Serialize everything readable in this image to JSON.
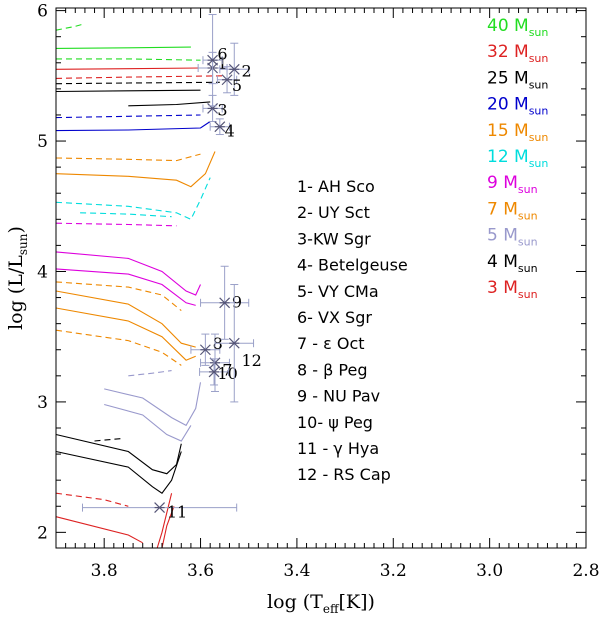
{
  "chart_data": {
    "type": "line",
    "xlabel": "log (T",
    "xlabel_sub": "eff",
    "xlabel_tail": "[K])",
    "ylabel": "log (L/L",
    "ylabel_sub": "sun",
    "ylabel_tail": ")",
    "xlim": [
      3.9,
      2.8
    ],
    "ylim": [
      1.88,
      6.02
    ],
    "x_ticks": [
      "3.8",
      "3.6",
      "3.4",
      "3.2",
      "3.0",
      "2.8"
    ],
    "y_ticks": [
      "2",
      "3",
      "4",
      "5",
      "6"
    ],
    "legend_placement": "top-right",
    "legend": [
      {
        "mass": "40",
        "unit": " M",
        "sub": "sun",
        "color": "#22dd22"
      },
      {
        "mass": "32",
        "unit": " M",
        "sub": "sun",
        "color": "#dd2222"
      },
      {
        "mass": "25",
        "unit": " M",
        "sub": "sun",
        "color": "#000000"
      },
      {
        "mass": "20",
        "unit": " M",
        "sub": "sun",
        "color": "#0000cc"
      },
      {
        "mass": "15",
        "unit": " M",
        "sub": "sun",
        "color": "#ee8800"
      },
      {
        "mass": "12",
        "unit": " M",
        "sub": "sun",
        "color": "#00dddd"
      },
      {
        "mass": "9",
        "unit": " M",
        "sub": "sun",
        "color": "#dd00dd"
      },
      {
        "mass": "7",
        "unit": " M",
        "sub": "sun",
        "color": "#ee8800"
      },
      {
        "mass": "5",
        "unit": " M",
        "sub": "sun",
        "color": "#9999cc"
      },
      {
        "mass": "4",
        "unit": " M",
        "sub": "sun",
        "color": "#000000"
      },
      {
        "mass": "3",
        "unit": " M",
        "sub": "sun",
        "color": "#dd2222"
      }
    ],
    "star_list": [
      "1- AH Sco",
      "2- UY Sct",
      "3-KW Sgr",
      "4- Betelgeuse",
      "5- VY CMa",
      "6- VX Sgr",
      "7 - ε Oct",
      "8 - β Peg",
      "9 - NU Pav",
      "10- ψ Peg",
      "11 - γ Hya",
      "12 - RS Cap"
    ],
    "stars": [
      {
        "label": "1",
        "x": 3.575,
        "y": 5.56,
        "xerr": 0.03,
        "yerr": 0.12,
        "lx": 3.565,
        "ly": 5.6
      },
      {
        "label": "2",
        "x": 3.53,
        "y": 5.55,
        "xerr": 0.03,
        "yerr": 0.2,
        "lx": 3.515,
        "ly": 5.54
      },
      {
        "label": "3",
        "x": 3.575,
        "y": 5.25,
        "xerr": 0.02,
        "yerr": 0.1,
        "lx": 3.565,
        "ly": 5.24
      },
      {
        "label": "4",
        "x": 3.56,
        "y": 5.11,
        "xerr": 0.02,
        "yerr": 0.06,
        "lx": 3.55,
        "ly": 5.08
      },
      {
        "label": "5",
        "x": 3.545,
        "y": 5.47,
        "xerr": 0.02,
        "yerr": 0.1,
        "lx": 3.535,
        "ly": 5.43
      },
      {
        "label": "6",
        "x": 3.575,
        "y": 5.62,
        "xerr": 0.02,
        "yerr": 0.35,
        "lx": 3.565,
        "ly": 5.67
      },
      {
        "label": "7",
        "x": 3.57,
        "y": 3.3,
        "xerr": 0.03,
        "yerr": 0.22,
        "lx": 3.555,
        "ly": 3.25
      },
      {
        "label": "8",
        "x": 3.59,
        "y": 3.4,
        "xerr": 0.03,
        "yerr": 0.12,
        "lx": 3.575,
        "ly": 3.45
      },
      {
        "label": "9",
        "x": 3.55,
        "y": 3.76,
        "xerr": 0.05,
        "yerr": 0.28,
        "lx": 3.535,
        "ly": 3.77
      },
      {
        "label": "10",
        "x": 3.572,
        "y": 3.23,
        "xerr": 0.03,
        "yerr": 0.1,
        "lx": 3.565,
        "ly": 3.22
      },
      {
        "label": "11",
        "x": 3.685,
        "y": 2.19,
        "xerr": 0.16,
        "yerr": 0.0,
        "lx": 3.67,
        "ly": 2.16
      },
      {
        "label": "12",
        "x": 3.53,
        "y": 3.45,
        "xerr": 0.04,
        "yerr": 0.45,
        "lx": 3.515,
        "ly": 3.32
      }
    ],
    "series": [
      {
        "mass": "40",
        "color": "#22dd22",
        "dash": false,
        "points": [
          [
            3.9,
            5.71
          ],
          [
            3.75,
            5.715
          ],
          [
            3.62,
            5.72
          ]
        ]
      },
      {
        "mass": "40",
        "color": "#22dd22",
        "dash": true,
        "points": [
          [
            3.9,
            5.85
          ],
          [
            3.86,
            5.88
          ],
          [
            3.84,
            5.9
          ]
        ]
      },
      {
        "mass": "40",
        "color": "#22dd22",
        "dash": true,
        "points": [
          [
            3.9,
            5.63
          ],
          [
            3.75,
            5.63
          ],
          [
            3.6,
            5.62
          ]
        ]
      },
      {
        "mass": "32",
        "color": "#dd2222",
        "dash": false,
        "points": [
          [
            3.9,
            5.55
          ],
          [
            3.75,
            5.555
          ],
          [
            3.6,
            5.56
          ]
        ]
      },
      {
        "mass": "32",
        "color": "#dd2222",
        "dash": true,
        "points": [
          [
            3.9,
            5.48
          ],
          [
            3.75,
            5.49
          ],
          [
            3.55,
            5.5
          ]
        ]
      },
      {
        "mass": "25",
        "color": "#000000",
        "dash": false,
        "points": [
          [
            3.9,
            5.38
          ],
          [
            3.75,
            5.385
          ],
          [
            3.6,
            5.39
          ]
        ]
      },
      {
        "mass": "25",
        "color": "#000000",
        "dash": true,
        "points": [
          [
            3.9,
            5.44
          ],
          [
            3.75,
            5.445
          ],
          [
            3.56,
            5.45
          ]
        ]
      },
      {
        "mass": "25",
        "color": "#000000",
        "dash": false,
        "points": [
          [
            3.75,
            5.27
          ],
          [
            3.65,
            5.28
          ],
          [
            3.58,
            5.3
          ]
        ]
      },
      {
        "mass": "20",
        "color": "#0000cc",
        "dash": false,
        "points": [
          [
            3.9,
            5.08
          ],
          [
            3.75,
            5.085
          ],
          [
            3.6,
            5.1
          ],
          [
            3.58,
            5.15
          ]
        ]
      },
      {
        "mass": "20",
        "color": "#0000cc",
        "dash": true,
        "points": [
          [
            3.9,
            5.18
          ],
          [
            3.75,
            5.19
          ],
          [
            3.6,
            5.2
          ]
        ]
      },
      {
        "mass": "15",
        "color": "#ee8800",
        "dash": false,
        "points": [
          [
            3.9,
            4.75
          ],
          [
            3.75,
            4.73
          ],
          [
            3.65,
            4.7
          ],
          [
            3.62,
            4.65
          ],
          [
            3.59,
            4.75
          ],
          [
            3.57,
            4.92
          ]
        ]
      },
      {
        "mass": "15",
        "color": "#ee8800",
        "dash": true,
        "points": [
          [
            3.9,
            4.87
          ],
          [
            3.75,
            4.86
          ],
          [
            3.65,
            4.85
          ],
          [
            3.6,
            4.9
          ]
        ]
      },
      {
        "mass": "12",
        "color": "#00dddd",
        "dash": true,
        "points": [
          [
            3.9,
            4.53
          ],
          [
            3.75,
            4.5
          ],
          [
            3.65,
            4.45
          ],
          [
            3.62,
            4.4
          ],
          [
            3.6,
            4.55
          ],
          [
            3.58,
            4.72
          ]
        ]
      },
      {
        "mass": "12",
        "color": "#00dddd",
        "dash": true,
        "points": [
          [
            3.85,
            4.45
          ],
          [
            3.75,
            4.44
          ],
          [
            3.66,
            4.42
          ]
        ]
      },
      {
        "mass": "9",
        "color": "#dd00dd",
        "dash": false,
        "points": [
          [
            3.9,
            4.15
          ],
          [
            3.75,
            4.1
          ],
          [
            3.68,
            4.0
          ],
          [
            3.63,
            3.85
          ],
          [
            3.61,
            3.82
          ],
          [
            3.6,
            3.9
          ]
        ]
      },
      {
        "mass": "9",
        "color": "#dd00dd",
        "dash": false,
        "points": [
          [
            3.9,
            4.02
          ],
          [
            3.75,
            3.98
          ],
          [
            3.68,
            3.9
          ],
          [
            3.63,
            3.76
          ],
          [
            3.61,
            3.74
          ]
        ]
      },
      {
        "mass": "9",
        "color": "#dd00dd",
        "dash": true,
        "points": [
          [
            3.9,
            4.37
          ],
          [
            3.75,
            4.36
          ],
          [
            3.65,
            4.35
          ]
        ]
      },
      {
        "mass": "7",
        "color": "#ee8800",
        "dash": false,
        "points": [
          [
            3.9,
            3.85
          ],
          [
            3.75,
            3.75
          ],
          [
            3.68,
            3.6
          ],
          [
            3.64,
            3.45
          ],
          [
            3.61,
            3.42
          ]
        ]
      },
      {
        "mass": "7",
        "color": "#ee8800",
        "dash": false,
        "points": [
          [
            3.9,
            3.72
          ],
          [
            3.75,
            3.62
          ],
          [
            3.68,
            3.5
          ],
          [
            3.63,
            3.32
          ],
          [
            3.61,
            3.35
          ]
        ]
      },
      {
        "mass": "7",
        "color": "#ee8800",
        "dash": true,
        "points": [
          [
            3.9,
            3.92
          ],
          [
            3.75,
            3.88
          ],
          [
            3.68,
            3.82
          ],
          [
            3.64,
            3.7
          ]
        ]
      },
      {
        "mass": "7",
        "color": "#ee8800",
        "dash": true,
        "points": [
          [
            3.9,
            3.55
          ],
          [
            3.75,
            3.47
          ],
          [
            3.68,
            3.38
          ],
          [
            3.64,
            3.28
          ]
        ]
      },
      {
        "mass": "5",
        "color": "#9999cc",
        "dash": false,
        "points": [
          [
            3.8,
            3.1
          ],
          [
            3.72,
            3.03
          ],
          [
            3.66,
            2.88
          ],
          [
            3.63,
            2.82
          ],
          [
            3.61,
            2.95
          ],
          [
            3.6,
            3.15
          ]
        ]
      },
      {
        "mass": "5",
        "color": "#9999cc",
        "dash": true,
        "points": [
          [
            3.75,
            3.2
          ],
          [
            3.7,
            3.22
          ],
          [
            3.66,
            3.24
          ]
        ]
      },
      {
        "mass": "5",
        "color": "#9999cc",
        "dash": false,
        "points": [
          [
            3.8,
            2.98
          ],
          [
            3.72,
            2.9
          ],
          [
            3.67,
            2.75
          ],
          [
            3.64,
            2.7
          ],
          [
            3.62,
            2.82
          ]
        ]
      },
      {
        "mass": "4",
        "color": "#000000",
        "dash": false,
        "points": [
          [
            3.9,
            2.62
          ],
          [
            3.75,
            2.5
          ],
          [
            3.7,
            2.35
          ],
          [
            3.68,
            2.3
          ],
          [
            3.66,
            2.4
          ],
          [
            3.64,
            2.62
          ]
        ]
      },
      {
        "mass": "4",
        "color": "#000000",
        "dash": true,
        "points": [
          [
            3.82,
            2.7
          ],
          [
            3.76,
            2.72
          ]
        ]
      },
      {
        "mass": "4",
        "color": "#000000",
        "dash": false,
        "points": [
          [
            3.9,
            2.75
          ],
          [
            3.75,
            2.62
          ],
          [
            3.7,
            2.48
          ],
          [
            3.67,
            2.45
          ],
          [
            3.65,
            2.52
          ],
          [
            3.64,
            2.68
          ]
        ]
      },
      {
        "mass": "3",
        "color": "#dd2222",
        "dash": false,
        "points": [
          [
            3.9,
            2.12
          ],
          [
            3.75,
            1.98
          ],
          [
            3.72,
            1.92
          ]
        ]
      },
      {
        "mass": "3",
        "color": "#dd2222",
        "dash": true,
        "points": [
          [
            3.9,
            2.3
          ],
          [
            3.8,
            2.25
          ],
          [
            3.75,
            2.2
          ]
        ]
      },
      {
        "mass": "3",
        "color": "#dd2222",
        "dash": false,
        "points": [
          [
            3.69,
            1.88
          ],
          [
            3.68,
            2.0
          ],
          [
            3.67,
            2.15
          ],
          [
            3.66,
            2.3
          ]
        ]
      },
      {
        "mass": "3",
        "color": "#dd2222",
        "dash": false,
        "points": [
          [
            3.68,
            1.88
          ],
          [
            3.67,
            2.05
          ],
          [
            3.655,
            2.2
          ]
        ]
      }
    ]
  }
}
